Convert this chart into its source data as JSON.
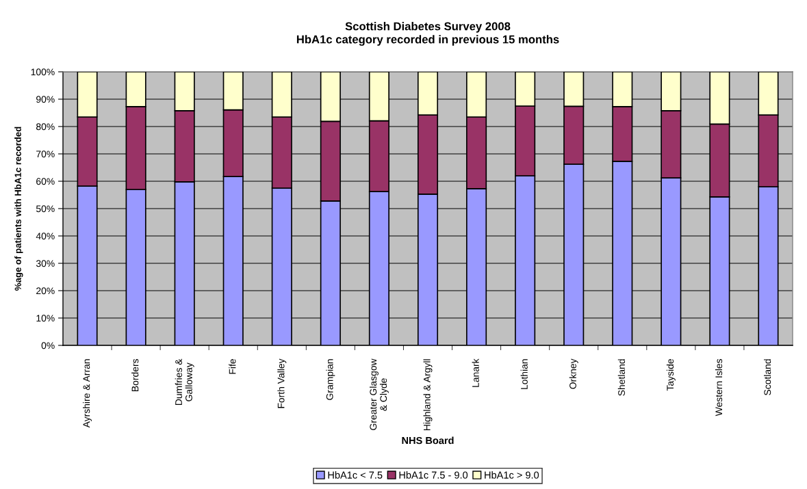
{
  "chart_data": {
    "type": "bar",
    "stacked": true,
    "title": "Scottish Diabetes Survey 2008\nHbA1c category recorded in previous 15 months",
    "xlabel": "NHS Board",
    "ylabel": "%age of patients with HbA1c recorded",
    "categories": [
      "Ayrshire & Arran",
      "Borders",
      "Dumfries &\nGalloway",
      "Fife",
      "Forth Valley",
      "Grampian",
      "Greater Glasgow\n& Clyde",
      "Highland & Argyll",
      "Lanark",
      "Lothian",
      "Orkney",
      "Shetland",
      "Tayside",
      "Western Isles",
      "Scotland"
    ],
    "series": [
      {
        "name": "HbA1c < 7.5",
        "color": "#9999ff",
        "values": [
          58.2,
          57.0,
          59.8,
          61.7,
          57.5,
          52.8,
          56.2,
          55.3,
          57.3,
          62.0,
          66.2,
          67.3,
          61.2,
          54.3,
          58.0
        ]
      },
      {
        "name": "HbA1c 7.5 - 9.0",
        "color": "#993366",
        "values": [
          25.3,
          30.3,
          26.0,
          24.4,
          26.0,
          29.1,
          25.9,
          28.9,
          26.2,
          25.5,
          21.2,
          20.0,
          24.6,
          26.6,
          26.2
        ]
      },
      {
        "name": "HbA1c > 9.0",
        "color": "#ffffcc",
        "values": [
          16.5,
          12.7,
          14.2,
          13.9,
          16.5,
          18.1,
          17.9,
          15.8,
          16.5,
          12.5,
          12.6,
          12.7,
          14.2,
          19.1,
          15.8
        ]
      }
    ],
    "ylim": [
      0,
      100
    ],
    "yticks": [
      {
        "value": 0,
        "label": "0%"
      },
      {
        "value": 10,
        "label": "10%"
      },
      {
        "value": 20,
        "label": "20%"
      },
      {
        "value": 30,
        "label": "30%"
      },
      {
        "value": 40,
        "label": "40%"
      },
      {
        "value": 50,
        "label": "50%"
      },
      {
        "value": 60,
        "label": "60%"
      },
      {
        "value": 70,
        "label": "70%"
      },
      {
        "value": 80,
        "label": "80%"
      },
      {
        "value": 90,
        "label": "90%"
      },
      {
        "value": 100,
        "label": "100%"
      }
    ],
    "grid": "y",
    "legend": "bottom"
  }
}
